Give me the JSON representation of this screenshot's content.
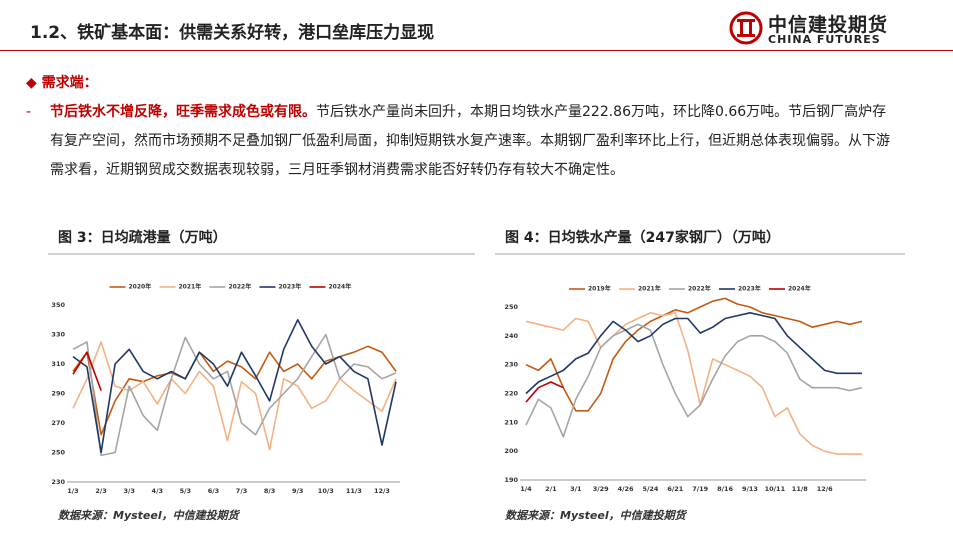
{
  "header": {
    "title": "1.2、铁矿基本面：供需关系好转，港口垒库压力显现",
    "logo_cn": "中信建投期货",
    "logo_en": "CHINA FUTURES"
  },
  "section": {
    "bullet": "◆",
    "heading": "需求端：",
    "dash": "-",
    "highlight": "节后铁水不增反降，旺季需求成色或有限。",
    "body": "节后铁水产量尚未回升，本期日均铁水产量222.86万吨，环比降0.66万吨。节后钢厂高炉存有复产空间，然而市场预期不足叠加钢厂低盈利局面，抑制短期铁水复产速率。本期钢厂盈利率环比上行，但近期总体表现偏弱。从下游需求看，近期钢贸成交数据表现较弱，三月旺季钢材消费需求能否好转仍存有较大不确定性。"
  },
  "chart_data": [
    {
      "type": "line",
      "title": "图 3：日均疏港量（万吨）",
      "source": "数据来源：Mysteel，中信建投期货",
      "legend": "top",
      "grid": false,
      "categories": [
        "1/3",
        null,
        "2/3",
        null,
        "3/3",
        null,
        "4/3",
        null,
        "5/3",
        null,
        "6/3",
        null,
        "7/3",
        null,
        "8/3",
        null,
        "9/3",
        null,
        "10/3",
        null,
        "11/3",
        null,
        "12/3",
        null
      ],
      "ylim": [
        230,
        350
      ],
      "yticks": [
        230,
        250,
        270,
        290,
        310,
        330,
        350
      ],
      "series": [
        {
          "name": "2020年",
          "color": "#c55a11",
          "values": [
            305,
            318,
            262,
            285,
            300,
            298,
            302,
            304,
            300,
            318,
            305,
            312,
            308,
            300,
            318,
            305,
            310,
            300,
            312,
            315,
            318,
            322,
            318,
            305
          ]
        },
        {
          "name": "2021年",
          "color": "#f4b183",
          "values": [
            280,
            300,
            325,
            295,
            292,
            298,
            283,
            300,
            290,
            305,
            295,
            258,
            298,
            290,
            252,
            300,
            295,
            280,
            285,
            300,
            292,
            285,
            278,
            300
          ]
        },
        {
          "name": "2022年",
          "color": "#a5a5a5",
          "values": [
            320,
            325,
            248,
            250,
            295,
            275,
            265,
            300,
            328,
            310,
            300,
            305,
            270,
            262,
            280,
            290,
            300,
            315,
            330,
            300,
            310,
            308,
            300,
            304
          ]
        },
        {
          "name": "2023年",
          "color": "#1f3864",
          "values": [
            315,
            308,
            250,
            310,
            320,
            305,
            300,
            305,
            300,
            318,
            310,
            295,
            318,
            302,
            285,
            320,
            340,
            322,
            310,
            315,
            305,
            300,
            255,
            298
          ]
        },
        {
          "name": "2024年",
          "color": "#c00000",
          "values": [
            303,
            318,
            292,
            null,
            null,
            null,
            null,
            null,
            null,
            null,
            null,
            null,
            null,
            null,
            null,
            null,
            null,
            null,
            null,
            null,
            null,
            null,
            null,
            null
          ]
        }
      ]
    },
    {
      "type": "line",
      "title": "图 4：日均铁水产量（247家钢厂）（万吨）",
      "source": "数据来源：Mysteel，中信建投期货",
      "legend": "top",
      "grid": false,
      "categories": [
        "1/4",
        null,
        "2/1",
        null,
        "3/1",
        null,
        "3/29",
        null,
        "4/26",
        null,
        "5/24",
        null,
        "6/21",
        null,
        "7/19",
        null,
        "8/16",
        null,
        "9/13",
        null,
        "10/11",
        null,
        "11/8",
        null,
        "12/6",
        null,
        null,
        null
      ],
      "ylim": [
        190,
        250
      ],
      "yticks": [
        190,
        200,
        210,
        220,
        230,
        240,
        250
      ],
      "series": [
        {
          "name": "2019年",
          "color": "#c55a11",
          "values": [
            230,
            228,
            232,
            222,
            214,
            214,
            220,
            232,
            238,
            242,
            245,
            247,
            249,
            248,
            250,
            252,
            253,
            251,
            250,
            248,
            247,
            246,
            245,
            243,
            244,
            245,
            244,
            245
          ]
        },
        {
          "name": "2021年",
          "color": "#f4b183",
          "values": [
            245,
            244,
            243,
            242,
            246,
            245,
            236,
            240,
            244,
            246,
            248,
            247,
            248,
            235,
            216,
            232,
            230,
            228,
            226,
            222,
            212,
            215,
            206,
            202,
            200,
            199,
            199,
            199
          ]
        },
        {
          "name": "2022年",
          "color": "#a5a5a5",
          "values": [
            209,
            218,
            215,
            205,
            218,
            226,
            236,
            240,
            242,
            244,
            242,
            230,
            220,
            212,
            216,
            225,
            233,
            238,
            240,
            240,
            238,
            234,
            225,
            222,
            222,
            222,
            221,
            222
          ]
        },
        {
          "name": "2023年",
          "color": "#1f3864",
          "values": [
            220,
            224,
            226,
            228,
            232,
            234,
            240,
            245,
            242,
            238,
            240,
            244,
            246,
            246,
            241,
            243,
            246,
            247,
            248,
            247,
            246,
            240,
            236,
            232,
            228,
            227,
            227,
            227
          ]
        },
        {
          "name": "2024年",
          "color": "#c00000",
          "values": [
            217,
            222,
            224,
            222,
            null,
            null,
            null,
            null,
            null,
            null,
            null,
            null,
            null,
            null,
            null,
            null,
            null,
            null,
            null,
            null,
            null,
            null,
            null,
            null,
            null,
            null,
            null,
            null
          ]
        }
      ]
    }
  ]
}
